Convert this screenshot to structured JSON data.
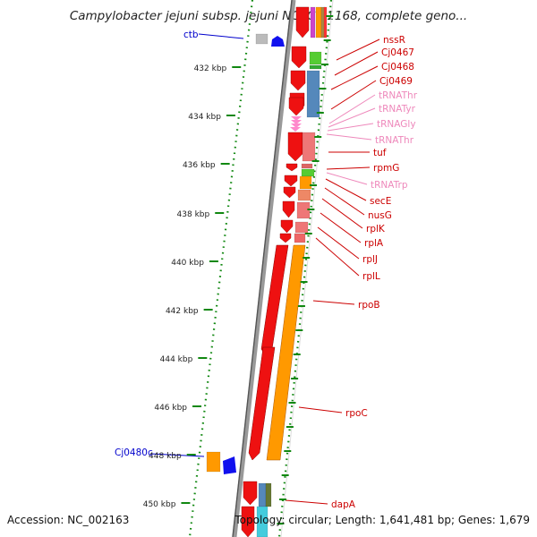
{
  "title": "Campylobacter jejuni subsp. jejuni NCTC 11168, complete geno...",
  "accession": "Accession: NC_002163",
  "topology": "Topology: circular; Length: 1,641,481 bp; Genes: 1,679",
  "scale_labels": [
    "432 kbp",
    "434 kbp",
    "436 kbp",
    "438 kbp",
    "440 kbp",
    "442 kbp",
    "444 kbp",
    "446 kbp",
    "448 kbp",
    "450 kbp"
  ],
  "left_labels": [
    "ctb",
    "Cj0480c"
  ],
  "right_labels": [
    "nssR",
    "Cj0467",
    "Cj0468",
    "Cj0469",
    "tRNAThr",
    "tRNATyr",
    "tRNAGly",
    "tRNAThr",
    "tuf",
    "rpmG",
    "tRNATrp",
    "secE",
    "nusG",
    "rplK",
    "rplA",
    "rplJ",
    "rplL",
    "rpoB",
    "rpoC",
    "dapA"
  ],
  "colors": {
    "gene_red": "#ee1111",
    "rna_pink": "#ff88cc",
    "label_red": "#cc0000",
    "label_pink": "#ee88bb",
    "label_blue": "#0000cc",
    "tick_green": "#118811",
    "orange": "#ff9900",
    "steel_blue": "#5588bb",
    "salmon": "#ee7777",
    "green": "#55cc33"
  }
}
